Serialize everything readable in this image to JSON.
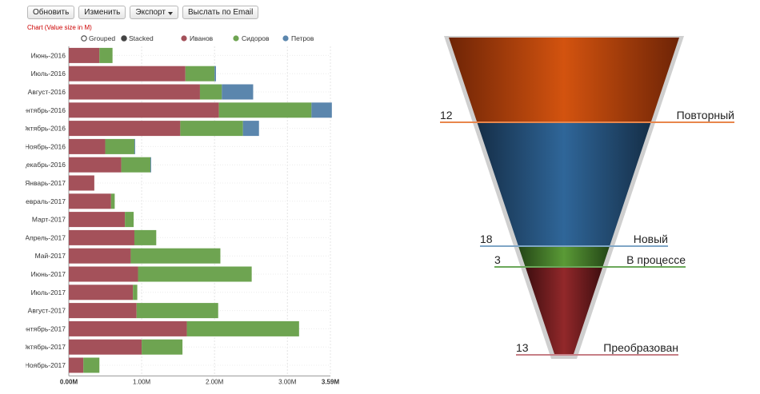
{
  "toolbar": {
    "refresh_label": "Обновить",
    "edit_label": "Изменить",
    "export_label": "Экспорт",
    "email_label": "Выслать по Email"
  },
  "chart_note": "Chart (Value size in M)",
  "colors": {
    "ivanov": "#a4515a",
    "sidorov": "#6ea451",
    "petrov": "#5b86ad",
    "funnel_repeat": "#c44d0f",
    "funnel_new": "#2b5f8e",
    "funnel_inprogress": "#4f8b30",
    "funnel_converted": "#852224"
  },
  "chart_data": [
    {
      "type": "bar",
      "orientation": "horizontal",
      "stacked": true,
      "legend": {
        "modes": [
          "Grouped",
          "Stacked"
        ],
        "selected_mode": "Stacked"
      },
      "categories": [
        "Июнь-2016",
        "Июль-2016",
        "Август-2016",
        "Сентябрь-2016",
        "Октябрь-2016",
        "Ноябрь-2016",
        "Декабрь-2016",
        "Январь-2017",
        "Февраль-2017",
        "Март-2017",
        "Апрель-2017",
        "Май-2017",
        "Июнь-2017",
        "Июль-2017",
        "Август-2017",
        "Сентябрь-2017",
        "Октябрь-2017",
        "Ноябрь-2017"
      ],
      "series": [
        {
          "name": "Иванов",
          "color": "#a4515a",
          "values": [
            0.42,
            1.6,
            1.8,
            2.06,
            1.53,
            0.5,
            0.72,
            0.35,
            0.58,
            0.77,
            0.9,
            0.85,
            0.95,
            0.88,
            0.93,
            1.62,
            1.0,
            0.2
          ]
        },
        {
          "name": "Сидоров",
          "color": "#6ea451",
          "values": [
            0.18,
            0.4,
            0.3,
            1.27,
            0.86,
            0.4,
            0.4,
            0.0,
            0.05,
            0.12,
            0.3,
            1.23,
            1.56,
            0.06,
            1.12,
            1.54,
            0.56,
            0.22
          ]
        },
        {
          "name": "Петров",
          "color": "#5b86ad",
          "values": [
            0,
            0.02,
            0.43,
            0.28,
            0.22,
            0.01,
            0.01,
            0,
            0,
            0,
            0,
            0,
            0,
            0,
            0,
            0,
            0,
            0
          ]
        }
      ],
      "xlim": [
        0,
        3.59
      ],
      "xticks": [
        "0.00M",
        "1.00M",
        "2.00M",
        "3.00M",
        "3.59M"
      ],
      "xtick_values": [
        0,
        1,
        2,
        3,
        3.59
      ]
    },
    {
      "type": "funnel",
      "stages": [
        {
          "name": "Повторный",
          "value": "12",
          "color": "#c44d0f"
        },
        {
          "name": "Новый",
          "value": "18",
          "color": "#2b5f8e"
        },
        {
          "name": "В процессе",
          "value": "3",
          "color": "#4f8b30"
        },
        {
          "name": "Преобразован",
          "value": "13",
          "color": "#852224"
        }
      ]
    }
  ]
}
